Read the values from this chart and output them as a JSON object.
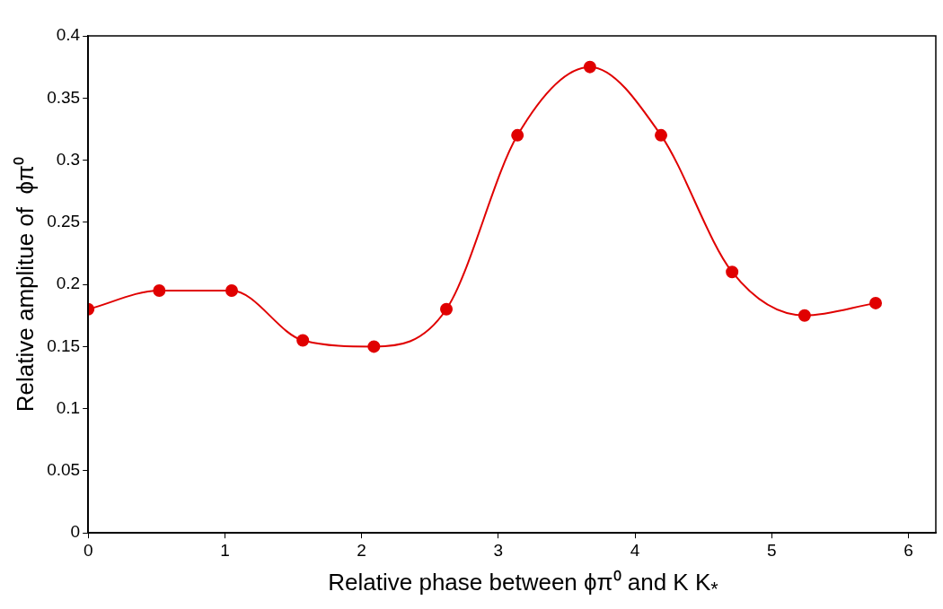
{
  "chart_data": {
    "type": "line",
    "xlabel": "Relative phase between  ϕπ⁰ and  K K$_{*}$",
    "ylabel": "Relative amplitue of  ϕπ⁰",
    "x": [
      0,
      0.52,
      1.05,
      1.57,
      2.09,
      2.62,
      3.14,
      3.67,
      4.19,
      4.71,
      5.24,
      5.76
    ],
    "series": [
      {
        "color": "#e00000",
        "values": [
          0.18,
          0.195,
          0.195,
          0.155,
          0.15,
          0.18,
          0.32,
          0.375,
          0.32,
          0.21,
          0.175,
          0.185
        ]
      }
    ],
    "xlim": [
      0,
      6.2
    ],
    "xticks": [
      0,
      1,
      2,
      3,
      4,
      5,
      6
    ],
    "ylim": [
      0,
      0.4
    ],
    "yticks": [
      0,
      0.05,
      0.1,
      0.15,
      0.2,
      0.25,
      0.3,
      0.35,
      0.4
    ],
    "marker": "circle",
    "line_style": "solid",
    "legend": false,
    "grid": false
  }
}
